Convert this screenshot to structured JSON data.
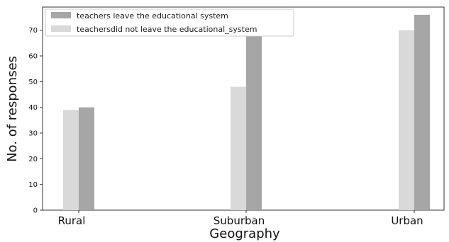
{
  "chart_data": {
    "type": "bar",
    "title": "",
    "xlabel": "Geography",
    "ylabel": "No. of responses",
    "categories": [
      "Rural",
      "Suburban",
      "Urban"
    ],
    "series": [
      {
        "name": "teachersdid not leave the educational_system",
        "color": "#d9d9d9",
        "values": [
          39,
          48,
          70
        ]
      },
      {
        "name": "teachers leave the educational system",
        "color": "#a6a6a6",
        "values": [
          40,
          76,
          76
        ]
      }
    ],
    "ylim": [
      0,
      79
    ],
    "yticks": [
      0,
      10,
      20,
      30,
      40,
      50,
      60,
      70
    ],
    "legend_order": [
      1,
      0
    ],
    "legend_position": "top-left",
    "grid": false
  }
}
